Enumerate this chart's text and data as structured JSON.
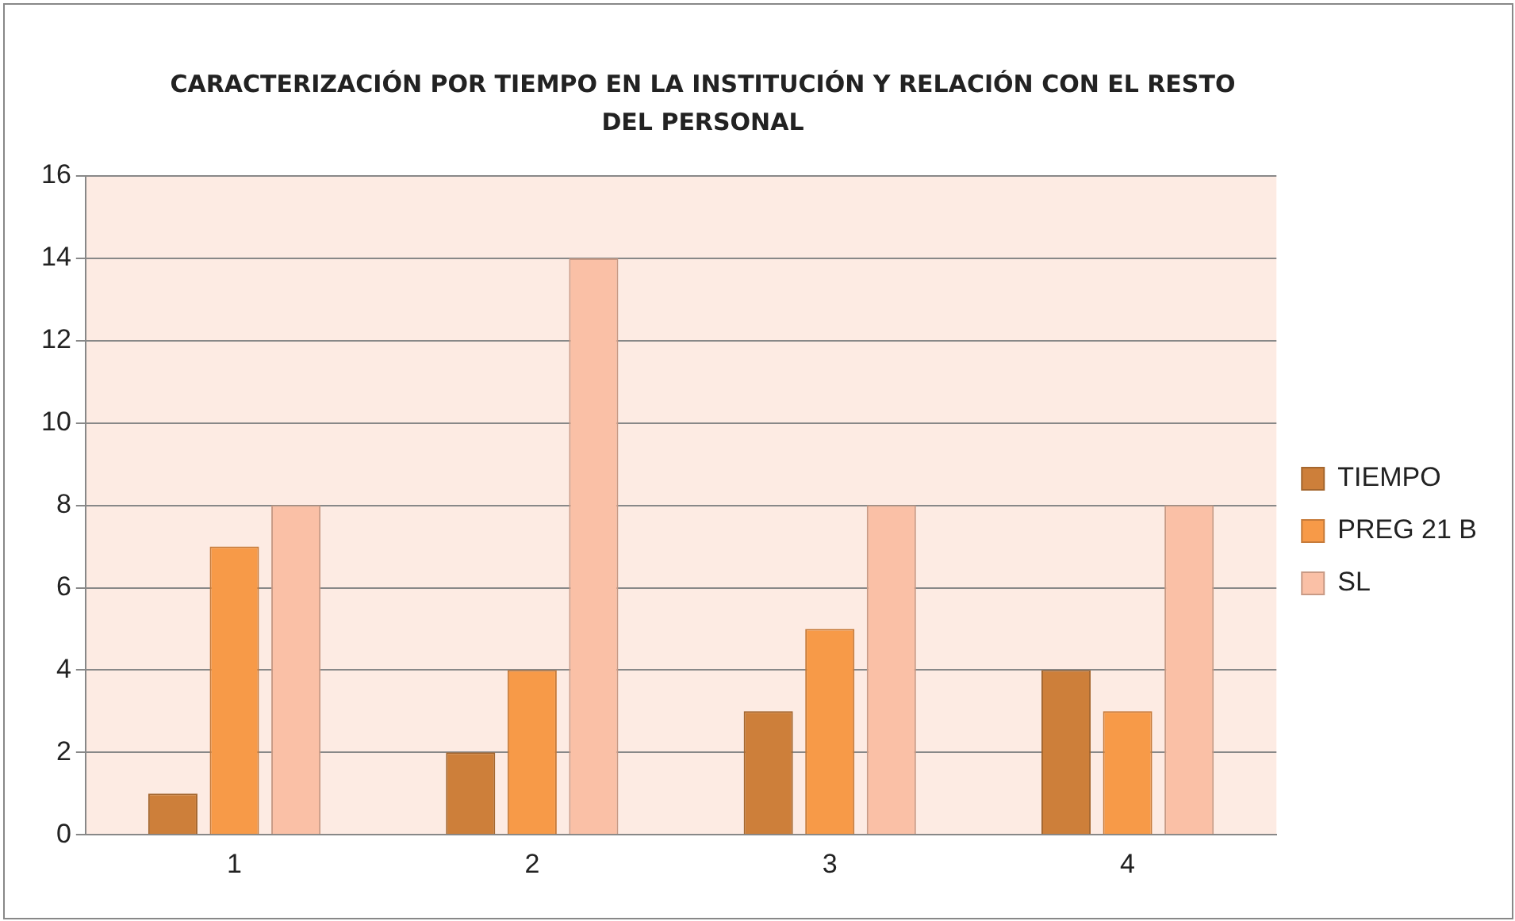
{
  "chart_data": {
    "type": "bar",
    "title": "CARACTERIZACIÓN POR TIEMPO EN LA INSTITUCIÓN Y RELACIÓN CON EL RESTO DEL PERSONAL",
    "categories": [
      "1",
      "2",
      "3",
      "4"
    ],
    "series": [
      {
        "name": "TIEMPO",
        "color": "#cd7f3a",
        "values": [
          1,
          2,
          3,
          4
        ]
      },
      {
        "name": "PREG 21 B",
        "color": "#f79a48",
        "values": [
          7,
          4,
          5,
          3
        ]
      },
      {
        "name": "SL",
        "color": "#fac0a6",
        "values": [
          8,
          14,
          8,
          8
        ]
      }
    ],
    "ylim": [
      0,
      16
    ],
    "yticks": [
      0,
      2,
      4,
      6,
      8,
      10,
      12,
      14,
      16
    ],
    "grid": "y",
    "legend": "right"
  }
}
